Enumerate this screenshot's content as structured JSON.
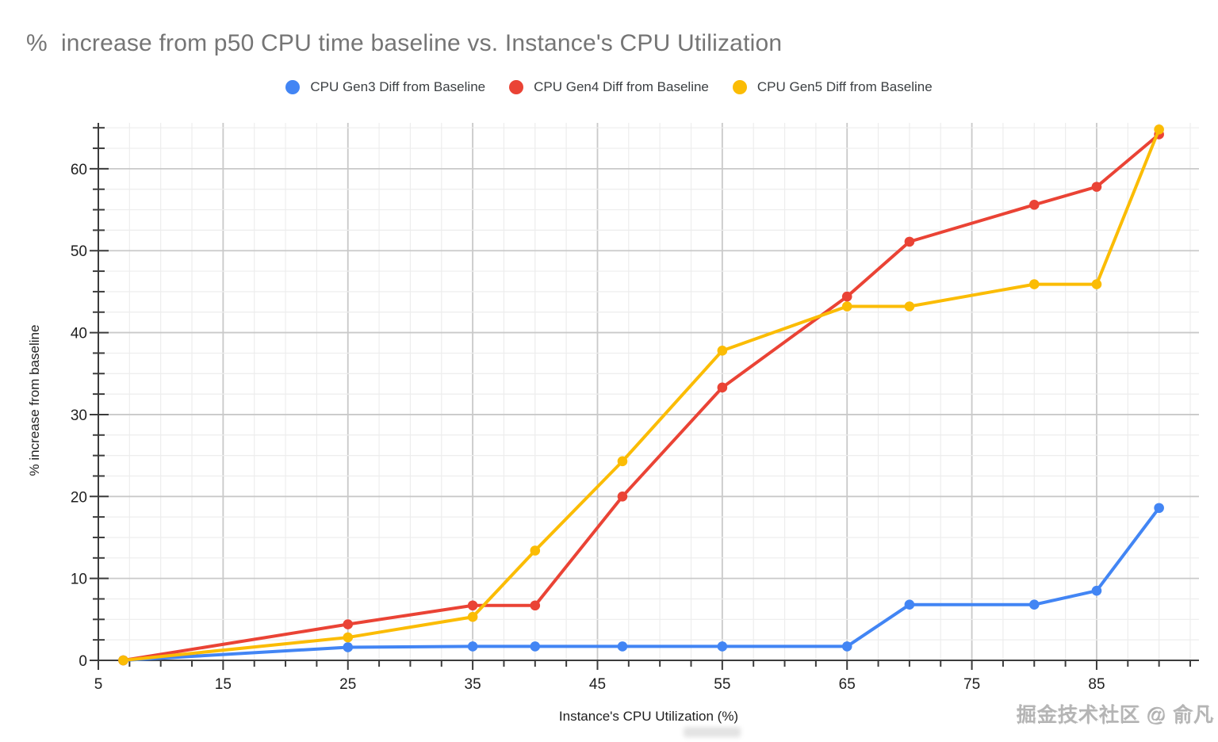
{
  "title": "%  increase from p50 CPU time baseline vs. Instance's CPU Utilization",
  "legend": [
    {
      "label": "CPU Gen3 Diff from Baseline",
      "color": "#4285F4"
    },
    {
      "label": "CPU Gen4 Diff from Baseline",
      "color": "#EA4335"
    },
    {
      "label": "CPU Gen5 Diff from Baseline",
      "color": "#FBBC04"
    }
  ],
  "watermark": "掘金技术社区 @ 俞凡",
  "chart_data": {
    "type": "line",
    "title": "%  increase from p50 CPU time baseline vs. Instance's CPU Utilization",
    "xlabel": "Instance's CPU Utilization (%)",
    "ylabel": "% increase from baseline",
    "x": [
      7,
      25,
      35,
      40,
      47,
      55,
      65,
      70,
      80,
      85,
      90
    ],
    "series": [
      {
        "id": "gen3",
        "name": "CPU Gen3 Diff from Baseline",
        "color": "#4285F4",
        "values": [
          0,
          1.6,
          1.7,
          1.7,
          1.7,
          1.7,
          1.7,
          6.8,
          6.8,
          8.5,
          18.6
        ]
      },
      {
        "id": "gen4",
        "name": "CPU Gen4 Diff from Baseline",
        "color": "#EA4335",
        "values": [
          0,
          4.4,
          6.7,
          6.7,
          20.0,
          33.3,
          44.4,
          51.1,
          55.6,
          57.8,
          64.2
        ]
      },
      {
        "id": "gen5",
        "name": "CPU Gen5 Diff from Baseline",
        "color": "#FBBC04",
        "values": [
          0,
          2.8,
          5.3,
          13.4,
          24.3,
          37.8,
          43.2,
          43.2,
          45.9,
          45.9,
          64.8
        ]
      }
    ],
    "xlim": [
      5,
      93.2
    ],
    "ylim": [
      0,
      65.6
    ],
    "x_ticks": [
      5,
      15,
      25,
      35,
      45,
      55,
      65,
      75,
      85
    ],
    "y_ticks": [
      0,
      10,
      20,
      30,
      40,
      50,
      60
    ],
    "minor_step": 2.5,
    "grid": true,
    "legend_position": "top",
    "markers": true,
    "colors": {
      "axis": "#3c3c3c",
      "major_grid": "#c9c9c9",
      "minor_grid": "#ededed",
      "tick_label": "#1f1f1f",
      "title_text": "#757575"
    }
  }
}
